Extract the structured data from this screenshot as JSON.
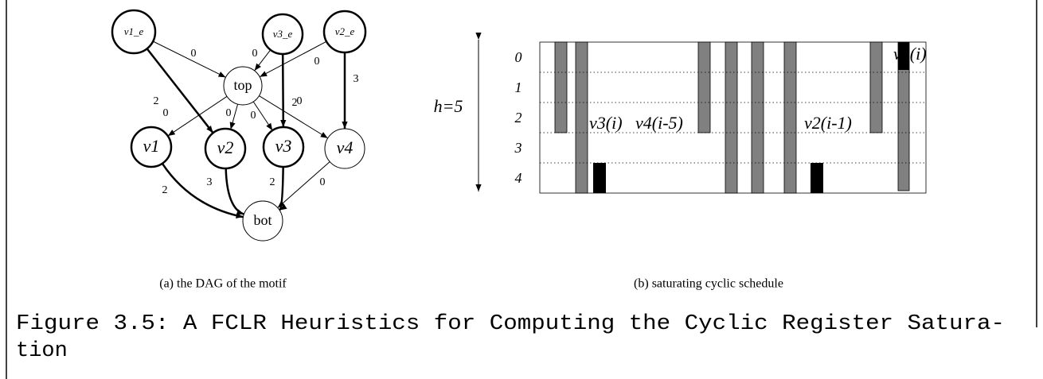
{
  "dag": {
    "nodes": [
      {
        "label": "v1_e"
      },
      {
        "label": "v3_e"
      },
      {
        "label": "v2_e"
      },
      {
        "label": "top"
      },
      {
        "label": "v1"
      },
      {
        "label": "v2"
      },
      {
        "label": "v3"
      },
      {
        "label": "v4"
      },
      {
        "label": "bot"
      }
    ],
    "edges": [
      {
        "from": 0,
        "to": 3,
        "weight": 0
      },
      {
        "from": 0,
        "to": 5,
        "weight": 2
      },
      {
        "from": 1,
        "to": 3,
        "weight": 0
      },
      {
        "from": 1,
        "to": 6,
        "weight": 2
      },
      {
        "from": 2,
        "to": 3,
        "weight": 0
      },
      {
        "from": 2,
        "to": 7,
        "weight": 3
      },
      {
        "from": 3,
        "to": 4,
        "weight": 0
      },
      {
        "from": 3,
        "to": 5,
        "weight": 0
      },
      {
        "from": 3,
        "to": 6,
        "weight": 0
      },
      {
        "from": 3,
        "to": 7,
        "weight": 0
      },
      {
        "from": 4,
        "to": 8,
        "weight": 2
      },
      {
        "from": 5,
        "to": 8,
        "weight": 3
      },
      {
        "from": 6,
        "to": 8,
        "weight": 2
      },
      {
        "from": 7,
        "to": 8,
        "weight": 0
      }
    ],
    "caption": "(a) the DAG of the motif"
  },
  "schedule": {
    "height_label": "h=5",
    "rows": [
      0,
      1,
      2,
      3,
      4
    ],
    "lifetime_labels": [
      "v3(i)",
      "v4(i-5)",
      "v2(i-1)",
      "v1(i)"
    ],
    "caption": "(b) saturating cyclic schedule"
  },
  "figure": {
    "caption_line1": "Figure 3.5: A FCLR Heuristics for Computing the Cyclic Register Satura-",
    "caption_line2": "tion"
  }
}
